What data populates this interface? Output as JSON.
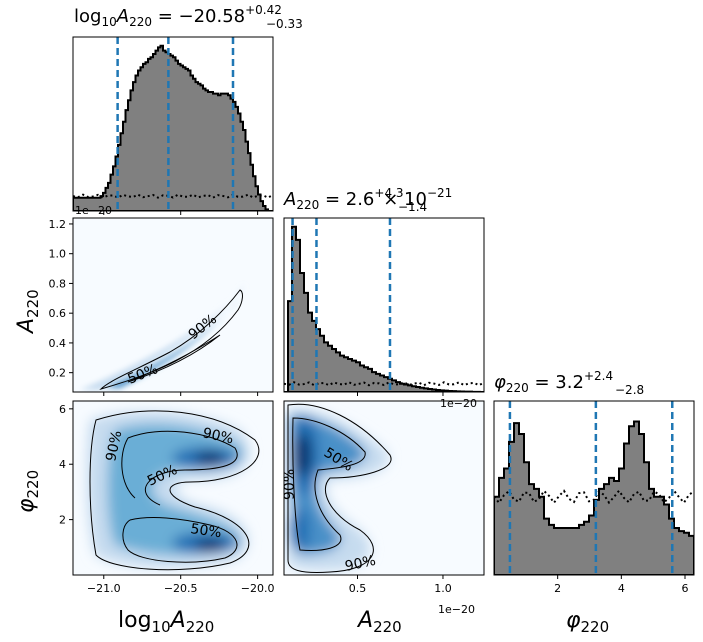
{
  "chart_data": {
    "type": "corner",
    "parameters": [
      {
        "key": "logA",
        "label_main": "log",
        "label_sub1": "10",
        "label_mid": "A",
        "label_sub2": "220",
        "range": [
          -21.2,
          -19.9
        ],
        "ticks": [
          -21.0,
          -20.5,
          -20.0
        ],
        "tick_labels": [
          "−21.0",
          "−20.5",
          "−20.0"
        ],
        "title_value": " = −20.58",
        "title_plus": "+0.42",
        "title_minus": "−0.33",
        "quantiles": [
          -20.91,
          -20.58,
          -20.16
        ],
        "histogram_edges": [
          -21.2,
          -19.9
        ],
        "histogram_counts": [
          0.08,
          0.08,
          0.08,
          0.08,
          0.08,
          0.08,
          0.08,
          0.08,
          0.08,
          0.08,
          0.08,
          0.09,
          0.11,
          0.14,
          0.17,
          0.22,
          0.27,
          0.33,
          0.4,
          0.47,
          0.54,
          0.61,
          0.67,
          0.73,
          0.78,
          0.82,
          0.85,
          0.87,
          0.89,
          0.9,
          0.92,
          0.93,
          0.95,
          0.97,
          0.99,
          1.0,
          0.97,
          0.96,
          0.95,
          0.94,
          0.93,
          0.91,
          0.89,
          0.88,
          0.87,
          0.86,
          0.85,
          0.82,
          0.8,
          0.78,
          0.77,
          0.76,
          0.74,
          0.73,
          0.72,
          0.72,
          0.71,
          0.71,
          0.7,
          0.71,
          0.71,
          0.71,
          0.7,
          0.68,
          0.66,
          0.63,
          0.59,
          0.54,
          0.49,
          0.42,
          0.35,
          0.28,
          0.21,
          0.15,
          0.1,
          0.06,
          0.03,
          0.01,
          0.0,
          0.0
        ],
        "prior_level": 0.09
      },
      {
        "key": "A",
        "label_main": "A",
        "label_sub2": "220",
        "range": [
          0.07,
          1.24
        ],
        "ticks": [
          0.5,
          1.0
        ],
        "tick_labels": [
          "0.5",
          "1.0"
        ],
        "ticks_vertical": [
          0.2,
          0.4,
          0.6,
          0.8,
          1.0,
          1.2
        ],
        "tick_labels_vertical": [
          "0.2",
          "0.4",
          "0.6",
          "0.8",
          "1.0",
          "1.2"
        ],
        "offset_label": "1e−20",
        "title_value": " = 2.6",
        "title_plus": "+4.3",
        "title_minus": "−1.4",
        "title_suffix": " × 10",
        "title_exponent": "−21",
        "quantiles": [
          0.12,
          0.26,
          0.69
        ],
        "histogram_counts": [
          0.0,
          0.55,
          1.0,
          0.92,
          0.72,
          0.6,
          0.48,
          0.43,
          0.38,
          0.34,
          0.3,
          0.28,
          0.26,
          0.24,
          0.22,
          0.21,
          0.2,
          0.19,
          0.18,
          0.16,
          0.15,
          0.14,
          0.12,
          0.11,
          0.1,
          0.09,
          0.08,
          0.07,
          0.06,
          0.05,
          0.045,
          0.04,
          0.035,
          0.03,
          0.026,
          0.022,
          0.018,
          0.015,
          0.012,
          0.01,
          0.008,
          0.006,
          0.005,
          0.004,
          0.003,
          0.002,
          0.002,
          0.001,
          0.001,
          0.0
        ],
        "prior_level": 0.05
      },
      {
        "key": "phi",
        "label_main": "φ",
        "label_sub2": "220",
        "range": [
          0.0,
          6.283
        ],
        "ticks": [
          2,
          4,
          6
        ],
        "tick_labels": [
          "2",
          "4",
          "6"
        ],
        "title_value": " = 3.2",
        "title_plus": "+2.4",
        "title_minus": "−2.8",
        "quantiles": [
          0.5,
          3.2,
          5.6
        ],
        "histogram_counts": [
          0.5,
          0.62,
          0.68,
          0.85,
          0.97,
          0.9,
          0.72,
          0.58,
          0.55,
          0.5,
          0.36,
          0.32,
          0.3,
          0.3,
          0.3,
          0.3,
          0.3,
          0.32,
          0.34,
          0.38,
          0.48,
          0.55,
          0.58,
          0.62,
          0.6,
          0.68,
          0.84,
          0.95,
          0.98,
          0.9,
          0.72,
          0.55,
          0.5,
          0.5,
          0.45,
          0.36,
          0.3,
          0.28,
          0.27,
          0.25
        ],
        "prior_level": 0.5
      }
    ],
    "contour_levels": [
      "50%",
      "90%"
    ],
    "colormap": [
      "#f7fbff",
      "#c6dbef",
      "#6baed6",
      "#2171b5",
      "#08306b"
    ],
    "quantile_color": "#1f77b4",
    "histogram_fill": "#808080"
  }
}
